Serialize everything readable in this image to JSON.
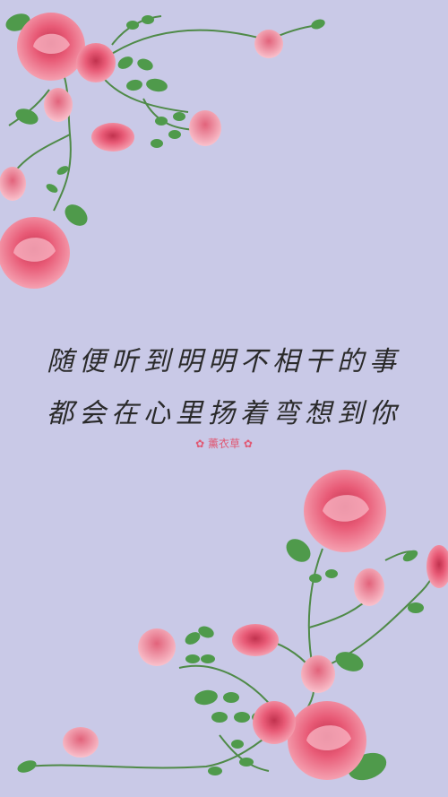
{
  "wallpaper": {
    "background_color": "#c9c9e7",
    "decoration": "pink-rose-vines",
    "quote_lines": [
      "随便听到明明不相干的事",
      "都会在心里扬着弯想到你"
    ],
    "signature": "薰衣草",
    "signature_icon": "flower-icon",
    "accent_color": "#e05873",
    "rose_color": "#ec6d86",
    "leaf_color": "#4f9a4b"
  }
}
